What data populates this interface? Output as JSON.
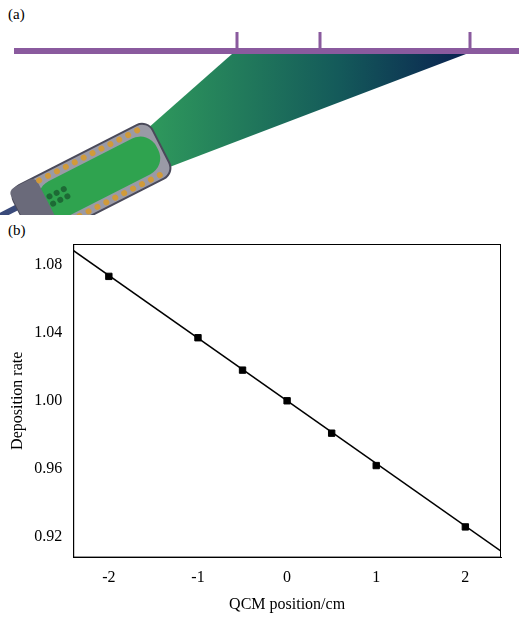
{
  "panels": {
    "a": "(a)",
    "b": "(b)"
  },
  "chart_data": {
    "type": "scatter",
    "x_label": "QCM position/cm",
    "y_label": "Deposition rate",
    "xlim": [
      -2.4,
      2.4
    ],
    "xticks": [
      -2,
      -1,
      0,
      1,
      2
    ],
    "ylim": [
      0.908,
      1.092
    ],
    "yticks": [
      0.92,
      0.96,
      {
        "value": 1,
        "label": "1.00"
      },
      1.04,
      1.08
    ],
    "grid": false,
    "series": [
      {
        "type": "scatter",
        "marker": "square",
        "color": "#000000",
        "x": [
          -2,
          -1,
          -0.5,
          0,
          0.5,
          1,
          2
        ],
        "values": [
          1.073,
          1.037,
          1.018,
          1.0,
          0.981,
          0.962,
          0.926
        ]
      },
      {
        "type": "line",
        "line_style": "solid",
        "color": "#000000",
        "x": [
          -2.4,
          2.4
        ],
        "values": [
          1.0882,
          0.9118
        ]
      }
    ]
  }
}
